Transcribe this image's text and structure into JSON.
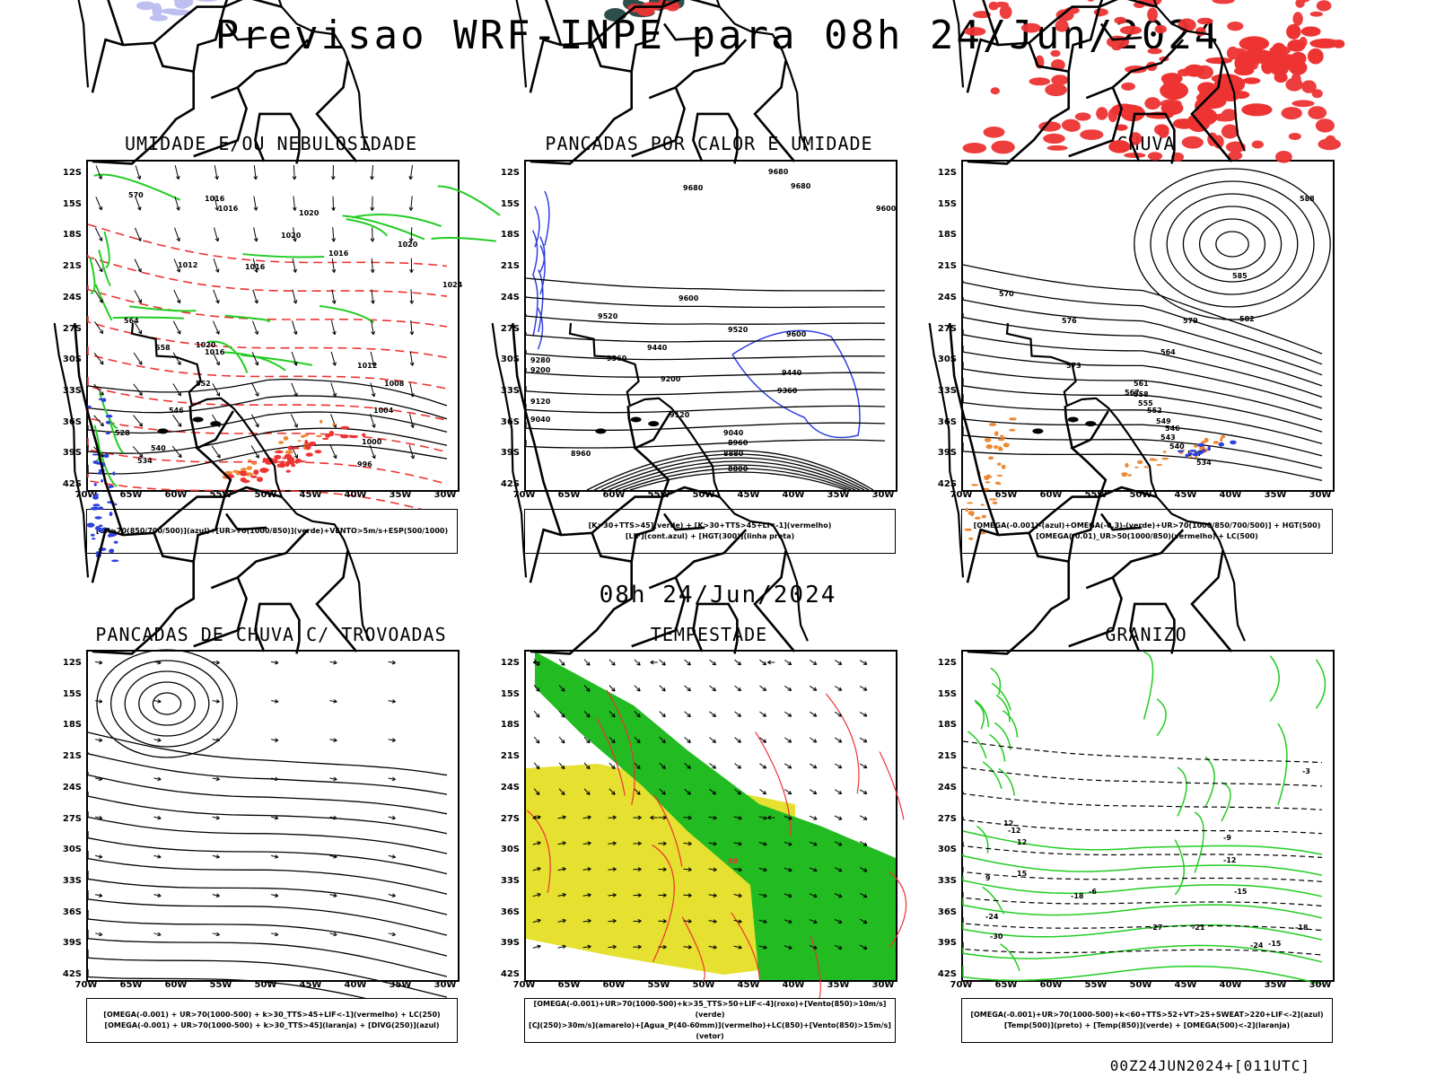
{
  "title": "Previsao WRF-INPE  para 08h 24/Jun/2024",
  "mid_date": "08h 24/Jun/2024",
  "footer": "00Z24JUN2024+[011UTC]",
  "lat_labels": [
    "12S",
    "15S",
    "18S",
    "21S",
    "24S",
    "27S",
    "30S",
    "33S",
    "36S",
    "39S",
    "42S"
  ],
  "lon_labels": [
    "70W",
    "65W",
    "60W",
    "55W",
    "50W",
    "45W",
    "40W",
    "35W",
    "30W"
  ],
  "panels": [
    {
      "title": "UMIDADE E/OU NEBULOSIDADE",
      "legend": [
        "[UR>70(850/700/500)](azul)+[UR>70(1000/850)](verde)+VENTO>5m/s+ESP(500/1000)"
      ],
      "contour_labels": [
        "1016",
        "1016",
        "1012",
        "1016",
        "1020",
        "1020",
        "1016",
        "1020",
        "1024",
        "1020",
        "1016",
        "1012",
        "1008",
        "1004",
        "1000",
        "996",
        "570",
        "564",
        "558",
        "552",
        "546",
        "540",
        "534",
        "528"
      ]
    },
    {
      "title": "PANCADAS POR CALOR E UMIDADE",
      "legend": [
        "[K>30+TTS>45](verde) + [K>30+TTS>45+LI<-1](vermelho)",
        "[LIF](cont.azul) + [HGT(300)](linha preta)"
      ],
      "contour_labels": [
        "9680",
        "9680",
        "9680",
        "9600",
        "9600",
        "9600",
        "9520",
        "9520",
        "9440",
        "9440",
        "9360",
        "9360",
        "9280",
        "9200",
        "9200",
        "9120",
        "9120",
        "9040",
        "9040",
        "8960",
        "8960",
        "8880",
        "8800"
      ]
    },
    {
      "title": "CHUVA",
      "legend": [
        "[OMEGA(-0.001)-(azul)+OMEGA(-0.3)-(verde)+UR>70(1000/850/700/500)] + HGT(500)",
        "[OMEGA(-0.01)_UR>50(1000/850)(vermelho) + LC(500)"
      ],
      "contour_labels": [
        "588",
        "585",
        "582",
        "579",
        "576",
        "573",
        "570",
        "567",
        "564",
        "561",
        "558",
        "555",
        "552",
        "549",
        "546",
        "543",
        "540",
        "537",
        "534"
      ]
    },
    {
      "title": "PANCADAS DE CHUVA C/ TROVOADAS",
      "legend": [
        "[OMEGA(-0.001) + UR>70(1000-500) + k>30_TTS>45+LIF<-1](vermelho) + LC(250)",
        "[OMEGA(-0.001) + UR>70(1000-500) + k>30_TTS>45](laranja) + [DIVG(250)](azul)"
      ],
      "contour_labels": []
    },
    {
      "title": "TEMPESTADE",
      "legend": [
        "[OMEGA(-0.001)+UR>70(1000-500)+k>35_TTS>50+LIF<-4](roxo)+[Vento(850)>10m/s](verde)",
        "[CJ(250)>30m/s](amarelo)+[Agua_P(40-60mm)](vermelho)+LC(850)+[Vento(850)>15m/s](vetor)"
      ],
      "contour_labels": [
        "40"
      ]
    },
    {
      "title": "GRANIZO",
      "legend": [
        "[OMEGA(-0.001)+UR>70(1000-500)+k<60+TTS>52+VT>25+SWEAT>220+LIF<-2](azul)",
        "[Temp(500)](preto) + [Temp(850)](verde) + [OMEGA(500)<-2](laranja)"
      ],
      "contour_labels": [
        "-3",
        "-6",
        "-9",
        "-12",
        "12",
        "-12",
        "-15",
        "-18",
        "-21",
        "-24",
        "-27",
        "-30",
        "-15",
        "-18",
        "-24",
        "9",
        "12",
        "15"
      ]
    }
  ],
  "colors": {
    "blue": "#3040e0",
    "green": "#22cc22",
    "red": "#ee3333",
    "dark_teal": "#2f4f4f",
    "yellow": "#e6e030",
    "orange": "#ee8833",
    "lavender": "#b8b8f0"
  }
}
